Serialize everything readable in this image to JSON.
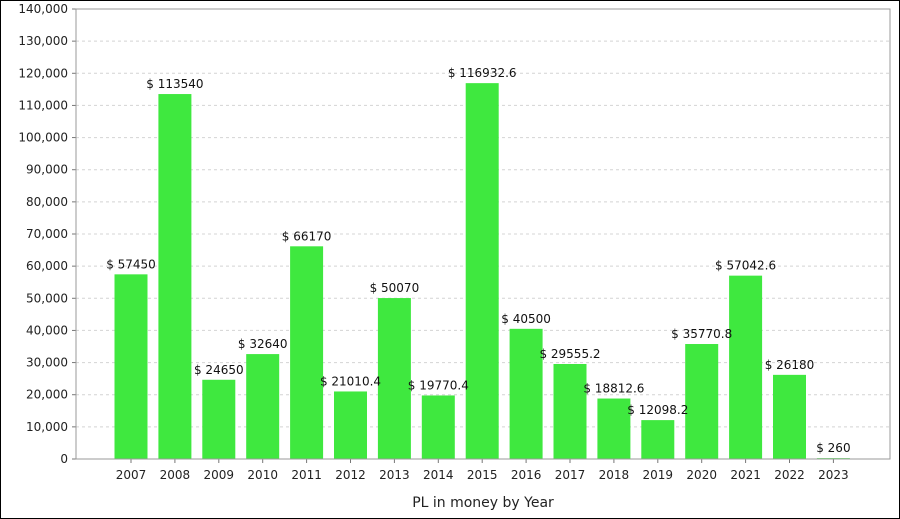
{
  "chart_data": {
    "type": "bar",
    "xlabel": "PL in money by Year",
    "ylabel": "",
    "categories": [
      "2007",
      "2008",
      "2009",
      "2010",
      "2011",
      "2012",
      "2013",
      "2014",
      "2015",
      "2016",
      "2017",
      "2018",
      "2019",
      "2020",
      "2021",
      "2022",
      "2023"
    ],
    "values": [
      57450,
      113540,
      24650,
      32640,
      66170,
      21010.4,
      50070,
      19770.4,
      116932.6,
      40500,
      29555.2,
      18812.6,
      12098.2,
      35770.8,
      57042.6,
      26180,
      260
    ],
    "data_labels": [
      "$ 57450",
      "$ 113540",
      "$ 24650",
      "$ 32640",
      "$ 66170",
      "$ 21010.4",
      "$ 50070",
      "$ 19770.4",
      "$ 116932.6",
      "$ 40500",
      "$ 29555.2",
      "$ 18812.6",
      "$ 12098.2",
      "$ 35770.8",
      "$ 57042.6",
      "$ 26180",
      "$ 260"
    ],
    "ylim": [
      0,
      140000
    ],
    "yticks": [
      0,
      10000,
      20000,
      30000,
      40000,
      50000,
      60000,
      70000,
      80000,
      90000,
      100000,
      110000,
      120000,
      130000,
      140000
    ],
    "ytick_labels": [
      "0",
      "10,000",
      "20,000",
      "30,000",
      "40,000",
      "50,000",
      "60,000",
      "70,000",
      "80,000",
      "90,000",
      "100,000",
      "110,000",
      "120,000",
      "130,000",
      "140,000"
    ],
    "grid": true,
    "bar_color": "#3fe83f",
    "grid_color": "#d4d4d4"
  }
}
